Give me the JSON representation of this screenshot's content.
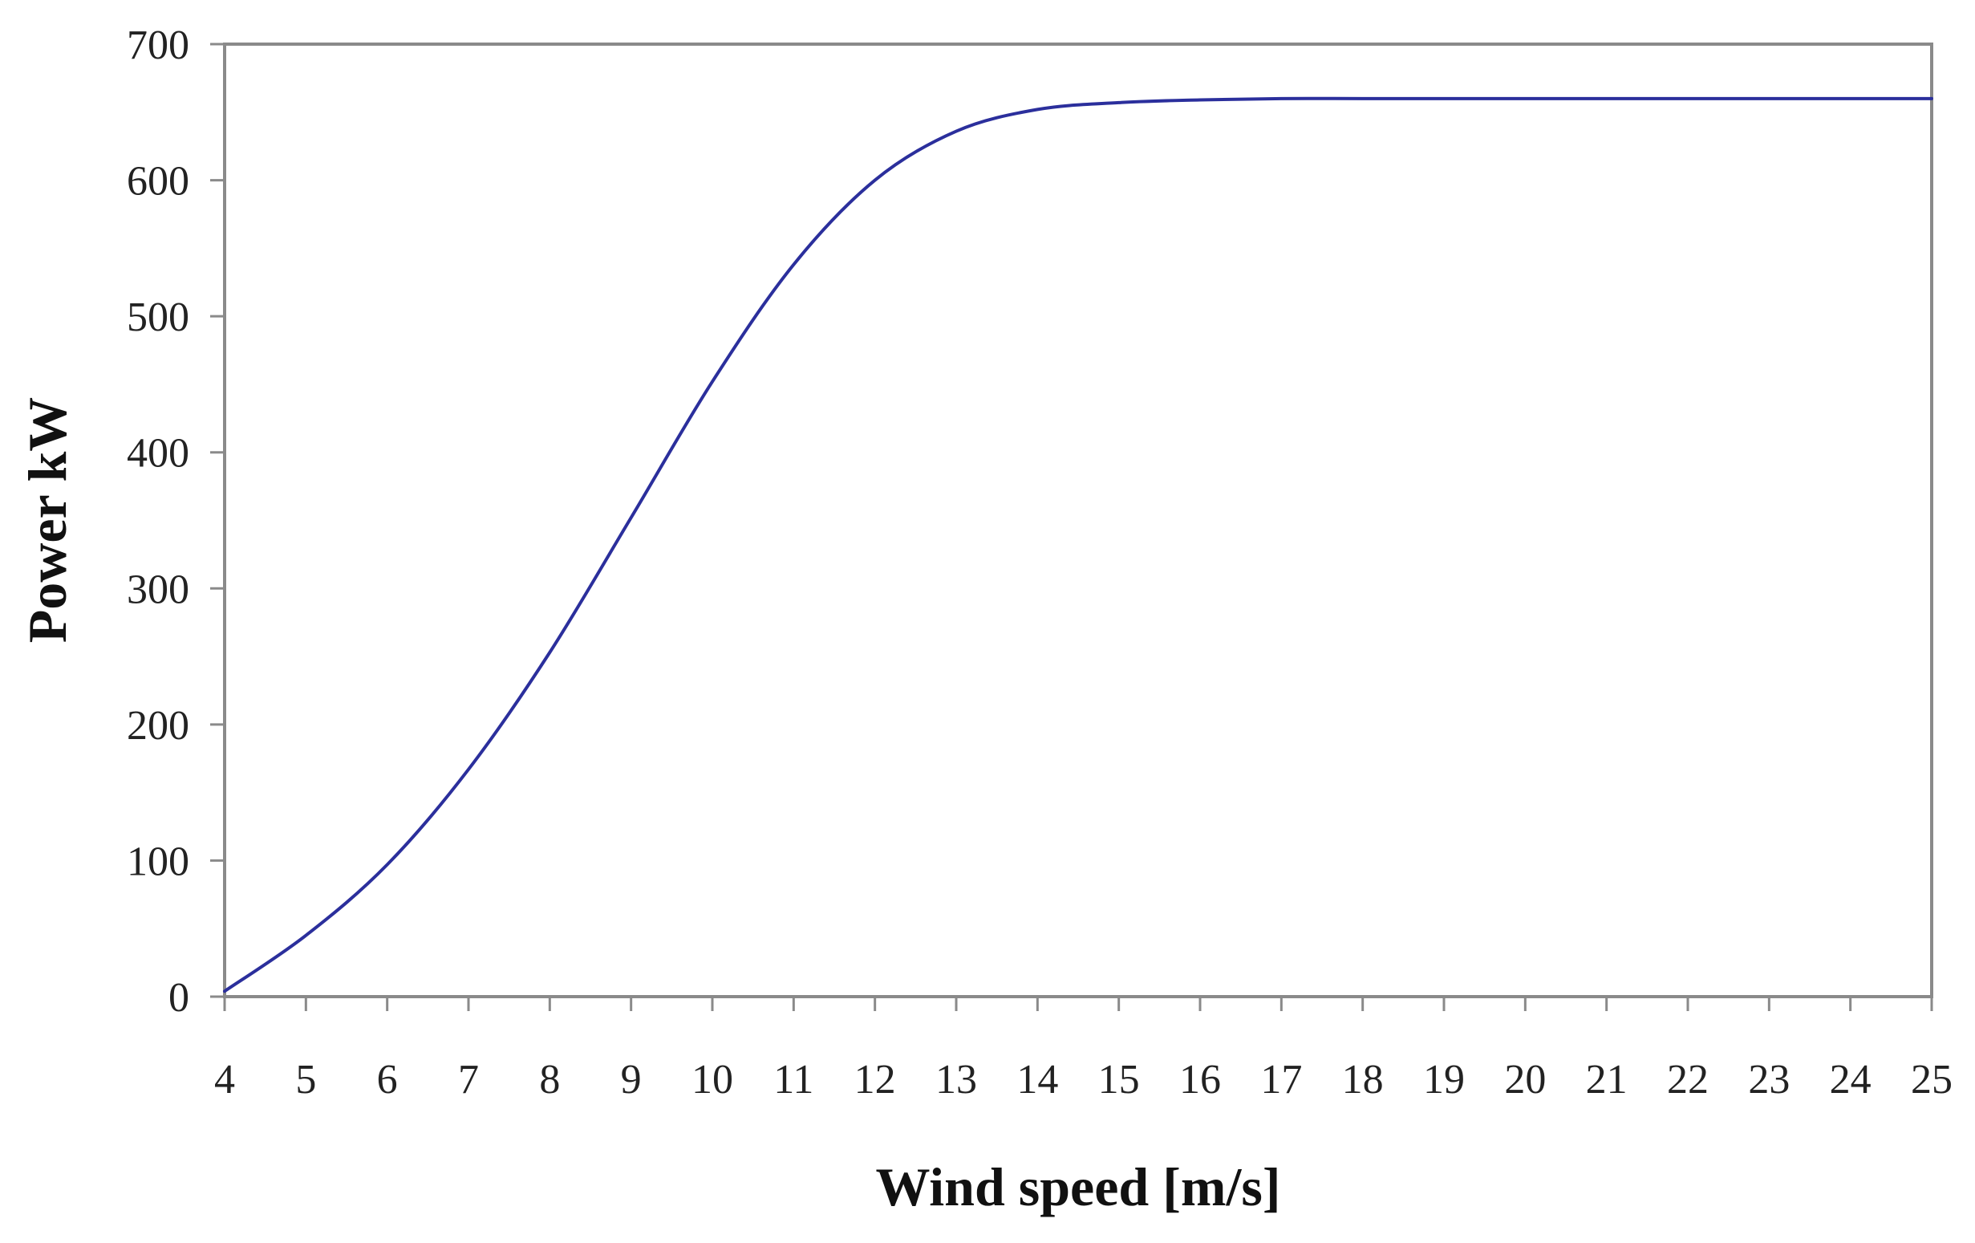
{
  "chart_data": {
    "type": "line",
    "title": "",
    "xlabel": "Wind speed [m/s]",
    "ylabel": "Power kW",
    "x": [
      4,
      5,
      6,
      7,
      8,
      9,
      10,
      11,
      12,
      13,
      14,
      15,
      16,
      17,
      18,
      19,
      20,
      21,
      22,
      23,
      24,
      25
    ],
    "series": [
      {
        "color": "#2b2f9c",
        "values": [
          4,
          45,
          97,
          167,
          253,
          352,
          452,
          538,
          600,
          636,
          652,
          657,
          659,
          660,
          660,
          660,
          660,
          660,
          660,
          660,
          660,
          660
        ]
      }
    ],
    "xticks": [
      "4",
      "5",
      "6",
      "7",
      "8",
      "9",
      "10",
      "11",
      "12",
      "13",
      "14",
      "15",
      "16",
      "17",
      "18",
      "19",
      "20",
      "21",
      "22",
      "23",
      "24",
      "25"
    ],
    "yticks": [
      "0",
      "100",
      "200",
      "300",
      "400",
      "500",
      "600",
      "700"
    ],
    "xlim": [
      4,
      25
    ],
    "ylim": [
      0,
      700
    ],
    "grid": false,
    "legend": "none",
    "frame_color": "#8a8a8a"
  }
}
